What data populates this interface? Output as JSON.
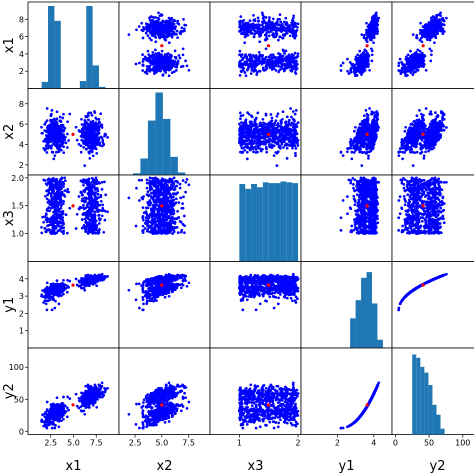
{
  "chart_data": {
    "type": "scatter",
    "layout": "scatter-matrix",
    "variables": [
      "x1",
      "x2",
      "x3",
      "y1",
      "y2"
    ],
    "axis_labels": {
      "x": [
        "x1",
        "x2",
        "x3",
        "y1",
        "y2"
      ],
      "y": [
        "x1",
        "x2",
        "x3",
        "y1",
        "y2"
      ]
    },
    "ticks": {
      "x1": {
        "range": [
          0,
          10
        ],
        "y_ticks": [
          2,
          4,
          6,
          8
        ],
        "x_ticks": [
          2.5,
          5.0,
          7.5
        ],
        "x_tick_labels": [
          "2.5",
          "5.0",
          "7.5"
        ]
      },
      "x2": {
        "range": [
          1,
          9.5
        ],
        "y_ticks": [
          2,
          4,
          6,
          8
        ],
        "x_ticks": [
          2.5,
          5.0,
          7.5
        ],
        "x_tick_labels": [
          "2.5",
          "5.0",
          "7.5"
        ]
      },
      "x3": {
        "range": [
          0.5,
          2.05
        ],
        "y_ticks": [
          1.0,
          1.5,
          2.0
        ],
        "y_tick_labels": [
          "1.0",
          "1.5",
          "2.0"
        ],
        "x_ticks": [
          1,
          2
        ]
      },
      "y1": {
        "range": [
          0,
          5
        ],
        "y_ticks": [
          1,
          2,
          3,
          4
        ],
        "x_ticks": [
          2,
          4
        ]
      },
      "y2": {
        "range": [
          -5,
          130
        ],
        "y_ticks": [
          0,
          50,
          100
        ],
        "x_ticks": [
          0,
          50,
          100
        ]
      }
    },
    "distributions": {
      "x1": {
        "clusters": [
          {
            "center": 3.0,
            "spread": 0.55
          },
          {
            "center": 7.0,
            "spread": 0.55
          }
        ]
      },
      "x2": {
        "center": 5.0,
        "spread": 0.85
      },
      "x3": {
        "uniform": [
          1.0,
          2.0
        ]
      },
      "y1": {
        "range": [
          2.2,
          4.4
        ]
      },
      "y2": {
        "range": [
          5,
          85
        ]
      }
    },
    "histograms": {
      "x1": {
        "edges": [
          1.5,
          2.2,
          2.9,
          3.6,
          4.3,
          5.0,
          5.7,
          6.4,
          7.1,
          7.8,
          8.5
        ],
        "counts": [
          0.08,
          1.0,
          0.82,
          0.0,
          0.0,
          0.0,
          0.09,
          1.0,
          0.28,
          0.02
        ]
      },
      "x2": {
        "edges": [
          2.3,
          3.0,
          3.7,
          4.4,
          5.1,
          5.8,
          6.5,
          7.2
        ],
        "counts": [
          0.02,
          0.2,
          0.66,
          1.0,
          0.68,
          0.22,
          0.03
        ]
      },
      "x3": {
        "edges": [
          1.0,
          1.1,
          1.2,
          1.3,
          1.4,
          1.5,
          1.6,
          1.7,
          1.8,
          1.9,
          2.0
        ],
        "counts": [
          0.94,
          0.88,
          0.94,
          0.9,
          0.96,
          0.95,
          0.95,
          0.97,
          0.96,
          0.95
        ]
      },
      "y1": {
        "edges": [
          2.7,
          3.0,
          3.3,
          3.6,
          3.9,
          4.2,
          4.5
        ],
        "counts": [
          0.36,
          0.58,
          0.85,
          0.92,
          0.54,
          0.1
        ]
      },
      "y2": {
        "edges": [
          25,
          31,
          37,
          43,
          49,
          55,
          61,
          67,
          73
        ],
        "counts": [
          0.97,
          0.93,
          0.82,
          0.75,
          0.6,
          0.36,
          0.24,
          0.07
        ]
      }
    },
    "series": [
      {
        "color": "#0000ff",
        "marker": "point"
      },
      {
        "color": "#ff0000",
        "marker": "point"
      }
    ],
    "histogram_color": "#1f77b4"
  }
}
